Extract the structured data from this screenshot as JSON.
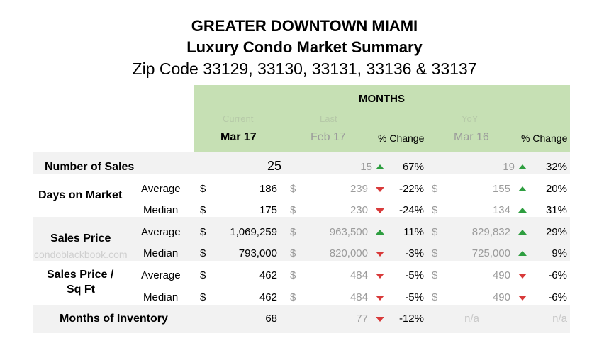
{
  "title": {
    "line1": "GREATER DOWNTOWN MIAMI",
    "line2": "Luxury Condo Market Summary",
    "line3": "Zip Code 33129, 33130, 33131, 33136 & 33137"
  },
  "header": {
    "months": "MONTHS",
    "current_label": "Current",
    "current_period": "Mar 17",
    "last_label": "Last",
    "last_period": "Feb 17",
    "change_label": "% Change",
    "yoy_label": "YoY",
    "yoy_period": "Mar 16",
    "yoy_change_label": "% Change"
  },
  "watermark": "condoblackbook.com",
  "rows": {
    "sales": {
      "label": "Number of Sales",
      "current": "25",
      "last": "15",
      "change": "67%",
      "yoy": "19",
      "yoy_change": "32%"
    },
    "dom": {
      "label": "Days on Market",
      "avg": {
        "label": "Average",
        "cur_cur": "$",
        "current": "186",
        "last_cur": "$",
        "last": "239",
        "change": "-22%",
        "yoy_cur": "$",
        "yoy": "155",
        "yoy_change": "20%"
      },
      "med": {
        "label": "Median",
        "cur_cur": "$",
        "current": "175",
        "last": "230",
        "change": "-24%",
        "yoy": "134",
        "yoy_change": "31%"
      }
    },
    "price": {
      "label": "Sales Price",
      "avg": {
        "label": "Average",
        "current": "1,069,259",
        "last": "963,500",
        "change": "11%",
        "yoy": "829,832",
        "yoy_change": "29%"
      },
      "med": {
        "label": "Median",
        "current": "793,000",
        "last": "820,000",
        "change": "-3%",
        "yoy": "725,000",
        "yoy_change": "9%"
      }
    },
    "sqft": {
      "label1": "Sales Price /",
      "label2": "Sq Ft",
      "avg": {
        "label": "Average",
        "current": "462",
        "last": "484",
        "change": "-5%",
        "yoy": "490",
        "yoy_change": "-6%"
      },
      "med": {
        "label": "Median",
        "current": "462",
        "last": "484",
        "change": "-5%",
        "yoy": "490",
        "yoy_change": "-6%"
      }
    },
    "inventory": {
      "label": "Months of Inventory",
      "current": "68",
      "last": "77",
      "change": "-12%",
      "yoy": "n/a",
      "yoy_change": "n/a"
    }
  },
  "currency_symbol": "$",
  "colors": {
    "header_green": "#c6e0b4",
    "band_gray": "#f2f2f2",
    "up_green": "#2e9e40",
    "down_red": "#d83a3a"
  }
}
